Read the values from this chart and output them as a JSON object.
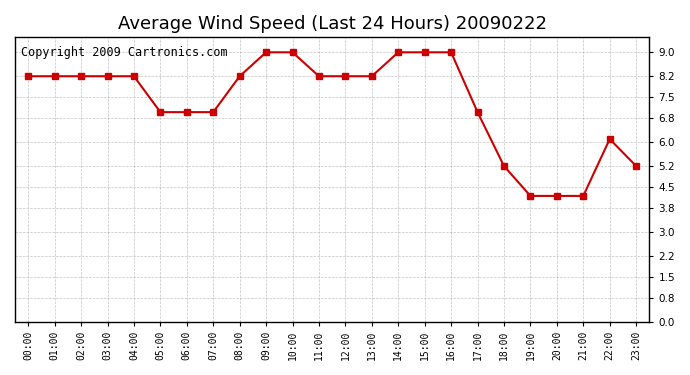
{
  "title": "Average Wind Speed (Last 24 Hours) 20090222",
  "copyright": "Copyright 2009 Cartronics.com",
  "x_labels": [
    "00:00",
    "01:00",
    "02:00",
    "03:00",
    "04:00",
    "05:00",
    "06:00",
    "07:00",
    "08:00",
    "09:00",
    "10:00",
    "11:00",
    "12:00",
    "13:00",
    "14:00",
    "15:00",
    "16:00",
    "17:00",
    "18:00",
    "19:00",
    "20:00",
    "21:00",
    "22:00",
    "23:00"
  ],
  "y_values": [
    8.2,
    8.2,
    8.2,
    8.2,
    8.2,
    7.0,
    7.0,
    7.0,
    8.2,
    9.0,
    9.0,
    8.2,
    8.2,
    8.2,
    9.0,
    9.0,
    9.0,
    7.0,
    5.2,
    4.2,
    4.2,
    4.2,
    6.1,
    5.2
  ],
  "line_color": "#cc0000",
  "marker": "s",
  "marker_size": 4,
  "marker_color": "#cc0000",
  "bg_color": "#ffffff",
  "grid_color": "#aaaaaa",
  "y_ticks": [
    0.0,
    0.8,
    1.5,
    2.2,
    3.0,
    3.8,
    4.5,
    5.2,
    6.0,
    6.8,
    7.5,
    8.2,
    9.0
  ],
  "ylim": [
    0.0,
    9.5
  ],
  "title_fontsize": 13,
  "copyright_fontsize": 8.5
}
